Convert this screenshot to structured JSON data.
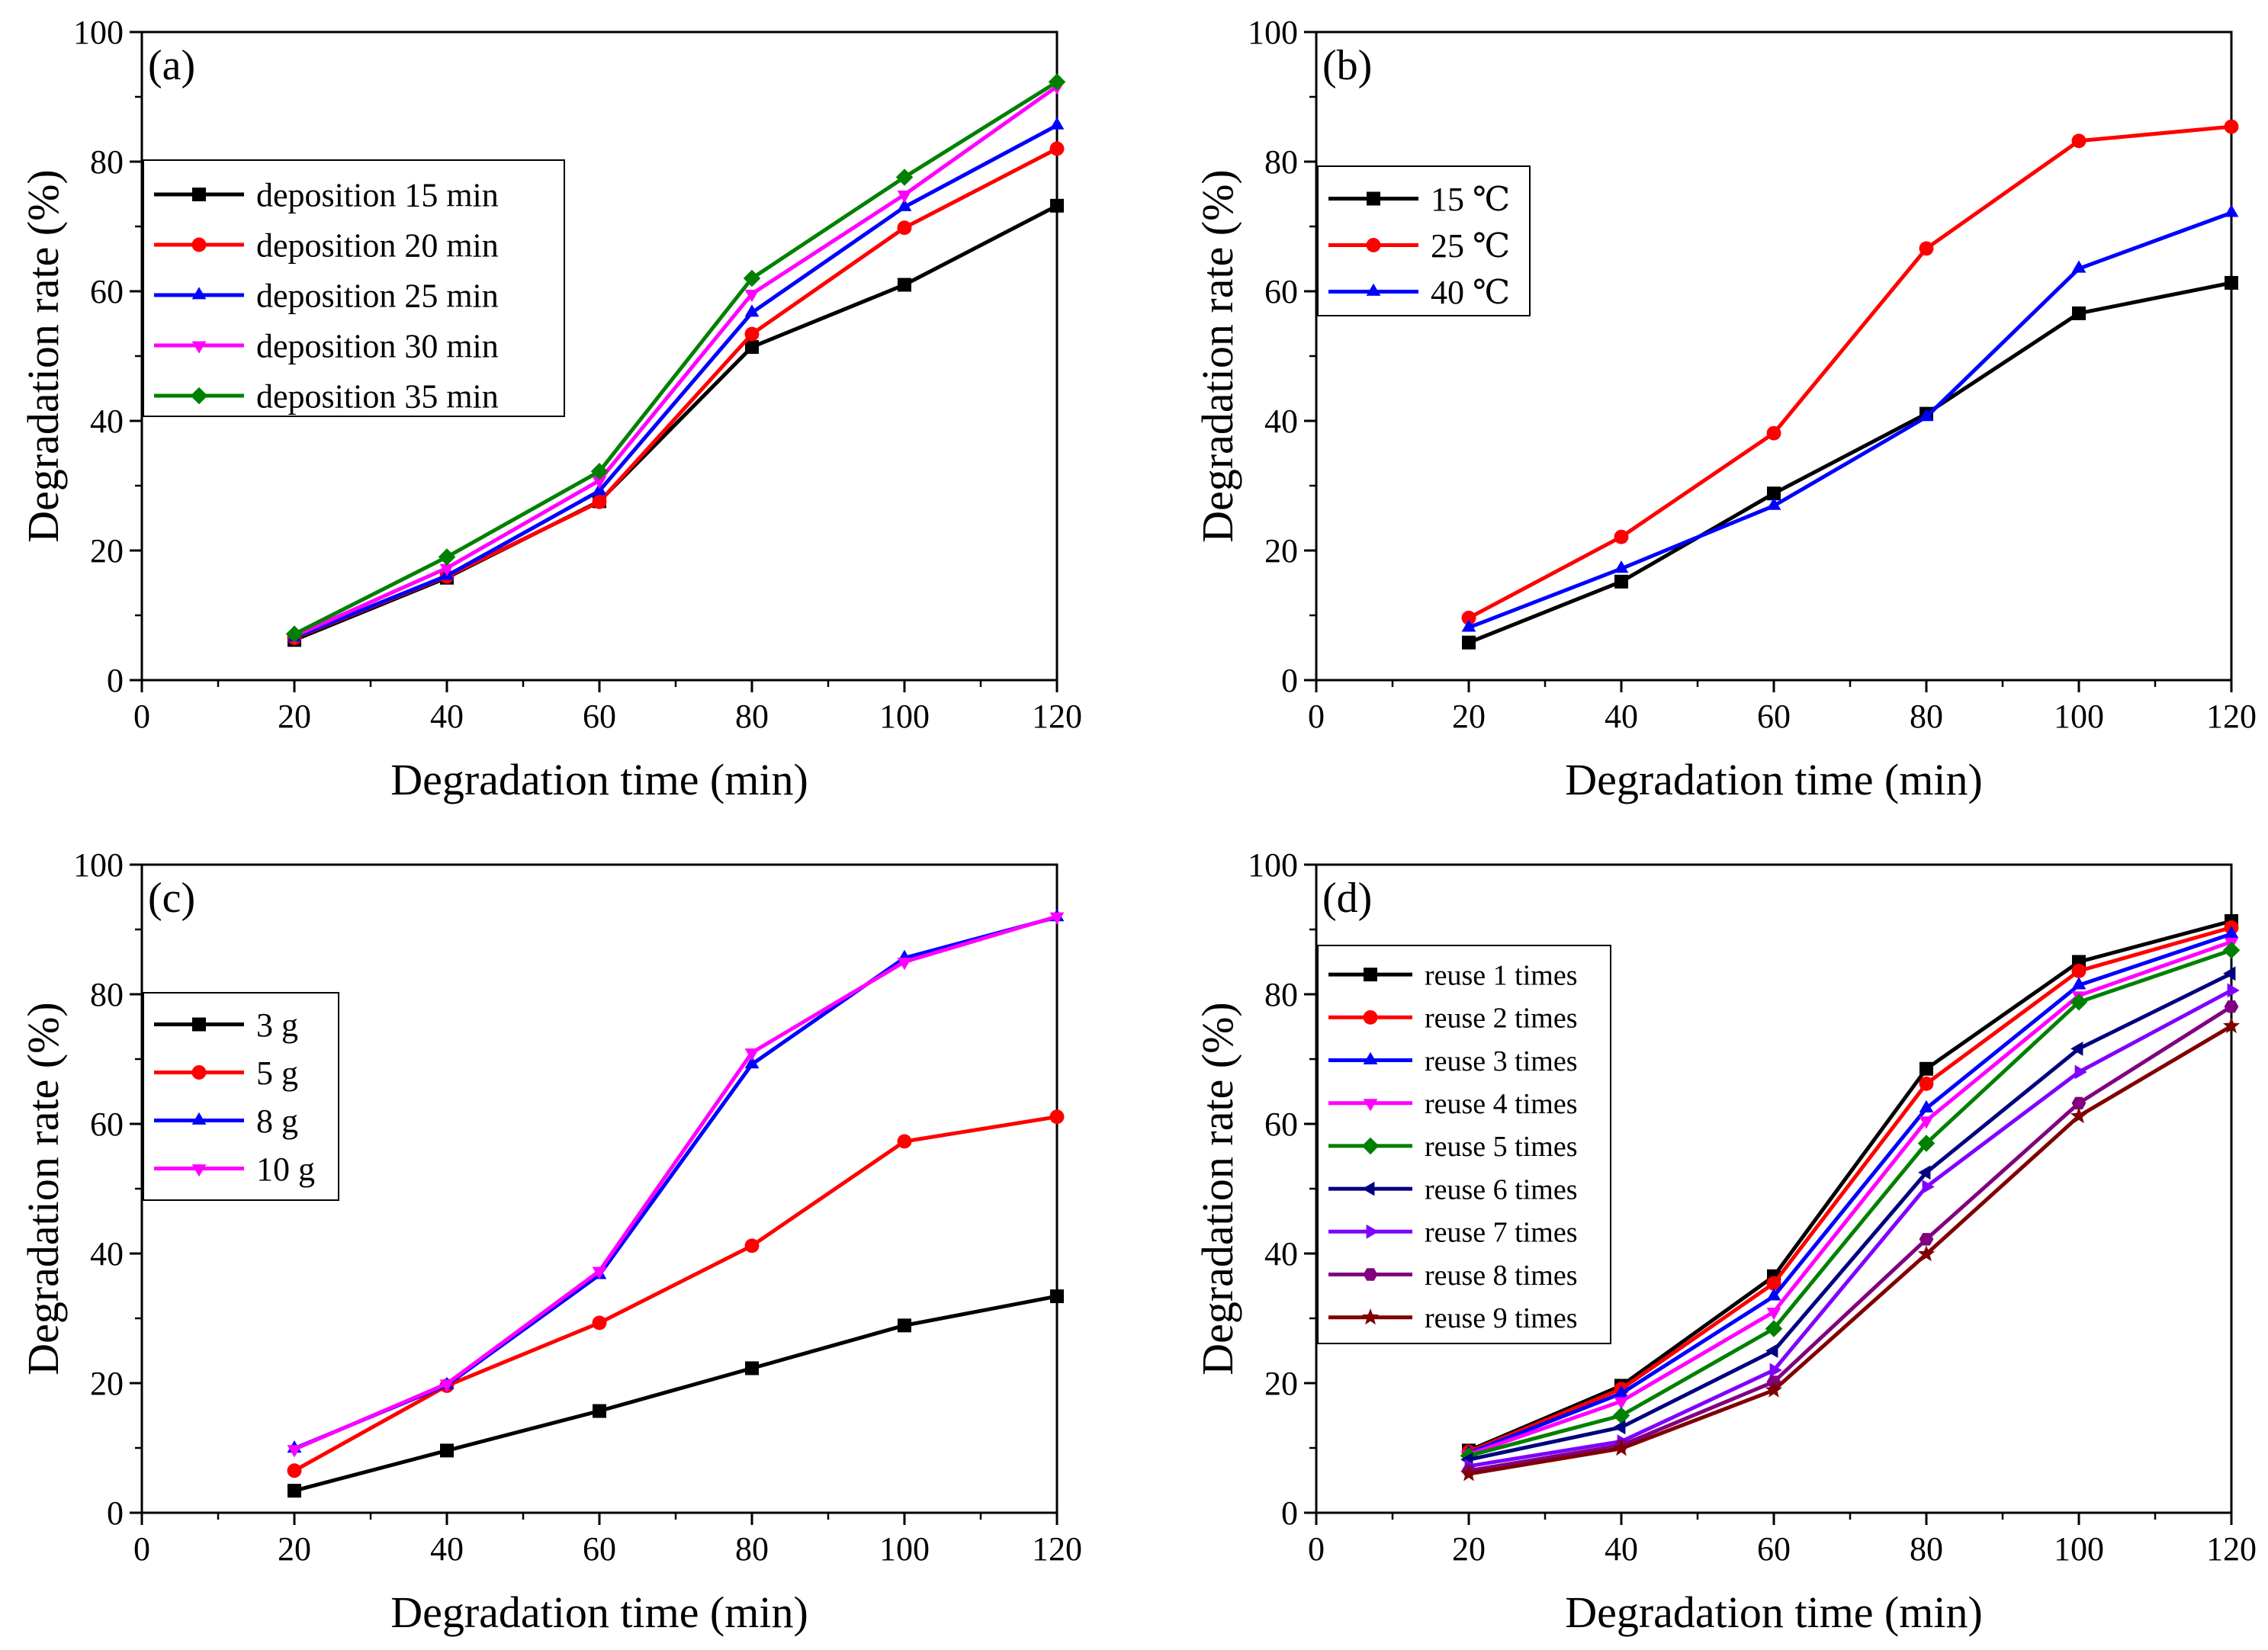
{
  "chart_data": [
    {
      "id": "a",
      "type": "line",
      "panel_label": "(a)",
      "xlabel": "Degradation time (min)",
      "ylabel": "Degradation rate (%)",
      "xlim": [
        0,
        120
      ],
      "ylim": [
        0,
        100
      ],
      "xticks": [
        0,
        20,
        40,
        60,
        80,
        100,
        120
      ],
      "yticks": [
        0,
        20,
        40,
        60,
        80,
        100
      ],
      "legend_position": "upper-left",
      "x": [
        20,
        40,
        60,
        80,
        100,
        120
      ],
      "series": [
        {
          "name": "deposition 15 min",
          "color": "#000000",
          "marker": "square",
          "values": [
            6.2,
            15.8,
            27.6,
            51.4,
            61.0,
            73.2
          ]
        },
        {
          "name": "deposition 20 min",
          "color": "#ff0000",
          "marker": "circle",
          "values": [
            6.5,
            16.0,
            27.5,
            53.4,
            69.8,
            82.0
          ]
        },
        {
          "name": "deposition 25 min",
          "color": "#0000ff",
          "marker": "triangle-up",
          "values": [
            6.6,
            16.1,
            29.2,
            56.7,
            73.0,
            85.6
          ]
        },
        {
          "name": "deposition 30 min",
          "color": "#ff00ff",
          "marker": "triangle-down",
          "values": [
            6.8,
            17.3,
            30.8,
            59.6,
            74.9,
            91.6
          ]
        },
        {
          "name": "deposition 35 min",
          "color": "#008000",
          "marker": "diamond",
          "values": [
            7.1,
            19.0,
            32.2,
            62.0,
            77.6,
            92.3
          ]
        }
      ]
    },
    {
      "id": "b",
      "type": "line",
      "panel_label": "(b)",
      "xlabel": "Degradation time (min)",
      "ylabel": "Degradation rate (%)",
      "xlim": [
        0,
        120
      ],
      "ylim": [
        0,
        100
      ],
      "xticks": [
        0,
        20,
        40,
        60,
        80,
        100,
        120
      ],
      "yticks": [
        0,
        20,
        40,
        60,
        80,
        100
      ],
      "legend_position": "upper-left",
      "x": [
        20,
        40,
        60,
        80,
        100,
        120
      ],
      "series": [
        {
          "name": "15 ℃",
          "color": "#000000",
          "marker": "square",
          "values": [
            5.8,
            15.2,
            28.8,
            41.1,
            56.6,
            61.3
          ]
        },
        {
          "name": "25 ℃",
          "color": "#ff0000",
          "marker": "circle",
          "values": [
            9.6,
            22.1,
            38.1,
            66.6,
            83.2,
            85.4
          ]
        },
        {
          "name": "40 ℃",
          "color": "#0000ff",
          "marker": "triangle-up",
          "values": [
            8.1,
            17.2,
            26.9,
            40.6,
            63.5,
            72.1
          ]
        }
      ]
    },
    {
      "id": "c",
      "type": "line",
      "panel_label": "(c)",
      "xlabel": "Degradation time (min)",
      "ylabel": "Degradation rate (%)",
      "xlim": [
        0,
        120
      ],
      "ylim": [
        0,
        100
      ],
      "xticks": [
        0,
        20,
        40,
        60,
        80,
        100,
        120
      ],
      "yticks": [
        0,
        20,
        40,
        60,
        80,
        100
      ],
      "legend_position": "middle-left",
      "x": [
        20,
        40,
        60,
        80,
        100,
        120
      ],
      "series": [
        {
          "name": "3 g",
          "color": "#000000",
          "marker": "square",
          "values": [
            3.4,
            9.6,
            15.7,
            22.3,
            28.9,
            33.4
          ]
        },
        {
          "name": "5 g",
          "color": "#ff0000",
          "marker": "circle",
          "values": [
            6.5,
            19.6,
            29.3,
            41.2,
            57.3,
            61.1
          ]
        },
        {
          "name": "8 g",
          "color": "#0000ff",
          "marker": "triangle-up",
          "values": [
            9.9,
            19.7,
            36.7,
            69.2,
            85.6,
            91.9
          ]
        },
        {
          "name": "10 g",
          "color": "#ff00ff",
          "marker": "triangle-down",
          "values": [
            9.8,
            19.9,
            37.3,
            71.0,
            85.0,
            92.0
          ]
        }
      ]
    },
    {
      "id": "d",
      "type": "line",
      "panel_label": "(d)",
      "xlabel": "Degradation time (min)",
      "ylabel": "Degradation rate (%)",
      "xlim": [
        0,
        120
      ],
      "ylim": [
        0,
        100
      ],
      "xticks": [
        0,
        20,
        40,
        60,
        80,
        100,
        120
      ],
      "yticks": [
        0,
        20,
        40,
        60,
        80,
        100
      ],
      "legend_position": "left",
      "x": [
        20,
        40,
        60,
        80,
        100,
        120
      ],
      "series": [
        {
          "name": "reuse 1 times",
          "color": "#000000",
          "marker": "square",
          "values": [
            9.6,
            19.6,
            36.5,
            68.5,
            85.0,
            91.3
          ]
        },
        {
          "name": "reuse 2 times",
          "color": "#ff0000",
          "marker": "circle",
          "values": [
            9.4,
            19.1,
            35.4,
            66.2,
            83.6,
            90.3
          ]
        },
        {
          "name": "reuse 3 times",
          "color": "#0000ff",
          "marker": "triangle-up",
          "values": [
            9.2,
            18.4,
            33.4,
            62.4,
            81.4,
            89.3
          ]
        },
        {
          "name": "reuse 4 times",
          "color": "#ff00ff",
          "marker": "triangle-down",
          "values": [
            9.0,
            17.2,
            31.0,
            60.5,
            79.8,
            88.1
          ]
        },
        {
          "name": "reuse 5 times",
          "color": "#008000",
          "marker": "diamond",
          "values": [
            8.8,
            15.0,
            28.4,
            57.0,
            78.8,
            86.8
          ]
        },
        {
          "name": "reuse 6 times",
          "color": "#000080",
          "marker": "triangle-left",
          "values": [
            8.2,
            13.2,
            25.0,
            52.5,
            71.6,
            83.2
          ]
        },
        {
          "name": "reuse 7 times",
          "color": "#8000ff",
          "marker": "triangle-right",
          "values": [
            7.2,
            11.0,
            22.0,
            50.3,
            68.0,
            80.6
          ]
        },
        {
          "name": "reuse 8 times",
          "color": "#800080",
          "marker": "hexagon",
          "values": [
            6.5,
            10.4,
            20.2,
            42.2,
            63.2,
            78.1
          ]
        },
        {
          "name": "reuse 9 times",
          "color": "#800000",
          "marker": "star",
          "values": [
            6.0,
            9.9,
            18.9,
            39.9,
            61.2,
            75.1
          ]
        }
      ]
    }
  ]
}
